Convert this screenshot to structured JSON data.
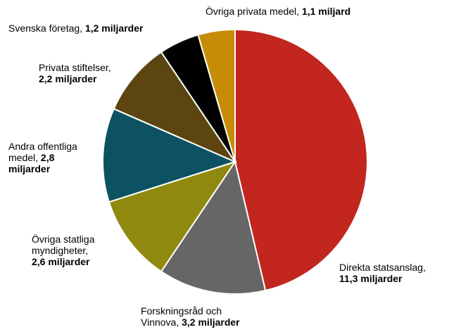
{
  "chart_data": {
    "type": "pie",
    "categories": [
      "Direkta statsanslag,",
      "Forskningsråd och Vinnova,",
      "Övriga statliga myndigheter,",
      "Andra offentliga medel,",
      "Privata stiftelser,",
      "Svenska företag,",
      "Övriga privata medel,"
    ],
    "values": [
      11.3,
      3.2,
      2.6,
      2.8,
      2.2,
      1.2,
      1.1
    ],
    "value_labels": [
      "11,3 miljarder",
      "3,2 miljarder",
      "2,6 miljarder",
      "2,8 miljarder",
      "2,2 miljarder",
      "1,2 miljarder",
      "1,1 miljard"
    ],
    "colors": [
      "#c3261f",
      "#666667",
      "#8f8a0f",
      "#0c5262",
      "#5c4510",
      "#000000",
      "#c78c06"
    ]
  }
}
